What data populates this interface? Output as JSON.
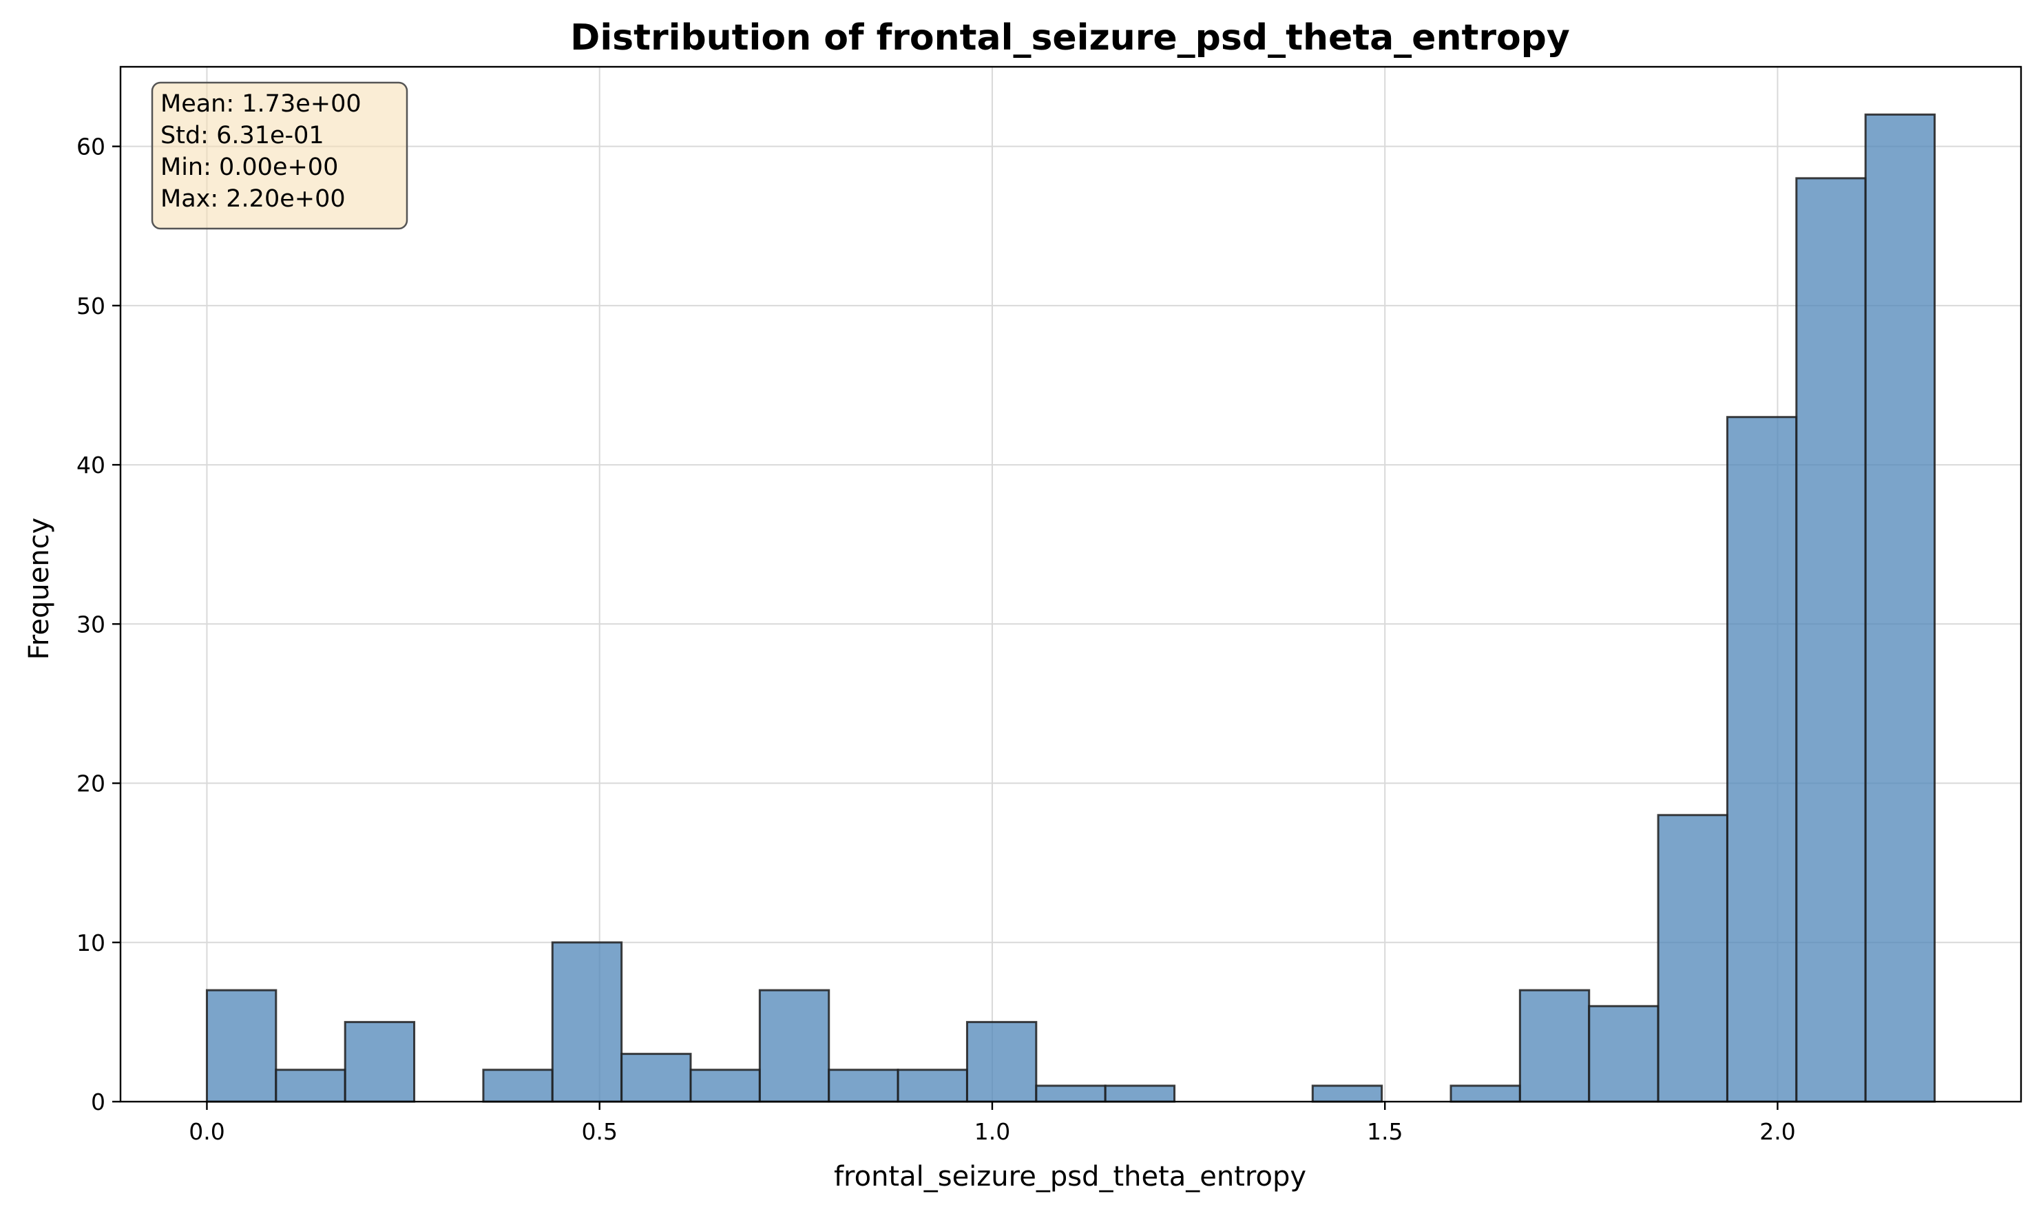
{
  "chart_data": {
    "type": "bar",
    "title": "Distribution of frontal_seizure_psd_theta_entropy",
    "xlabel": "frontal_seizure_psd_theta_entropy",
    "ylabel": "Frequency",
    "xlim": [
      -0.11,
      2.31
    ],
    "ylim": [
      0,
      65
    ],
    "grid": true,
    "bar_color": "#4f86b8",
    "edge_color": "#1f1f1f",
    "x_ticks": [
      0.0,
      0.5,
      1.0,
      1.5,
      2.0
    ],
    "x_tick_labels": [
      "0.0",
      "0.5",
      "1.0",
      "1.5",
      "2.0"
    ],
    "y_ticks": [
      0,
      10,
      20,
      30,
      40,
      50,
      60
    ],
    "y_tick_labels": [
      "0",
      "10",
      "20",
      "30",
      "40",
      "50",
      "60"
    ],
    "bin_edges": [
      0.0,
      0.088,
      0.176,
      0.264,
      0.352,
      0.44,
      0.528,
      0.616,
      0.704,
      0.792,
      0.88,
      0.968,
      1.056,
      1.144,
      1.232,
      1.32,
      1.408,
      1.496,
      1.584,
      1.672,
      1.76,
      1.848,
      1.936,
      2.024,
      2.112,
      2.2
    ],
    "counts": [
      7,
      2,
      5,
      0,
      2,
      10,
      3,
      2,
      7,
      2,
      2,
      5,
      1,
      1,
      0,
      0,
      1,
      0,
      1,
      7,
      6,
      18,
      43,
      58,
      62
    ],
    "stats": {
      "lines": [
        "Mean: 1.73e+00",
        "Std: 6.31e-01",
        "Min: 0.00e+00",
        "Max: 2.20e+00"
      ],
      "box_fill": "#f5deb3",
      "placement": "top-left"
    }
  }
}
